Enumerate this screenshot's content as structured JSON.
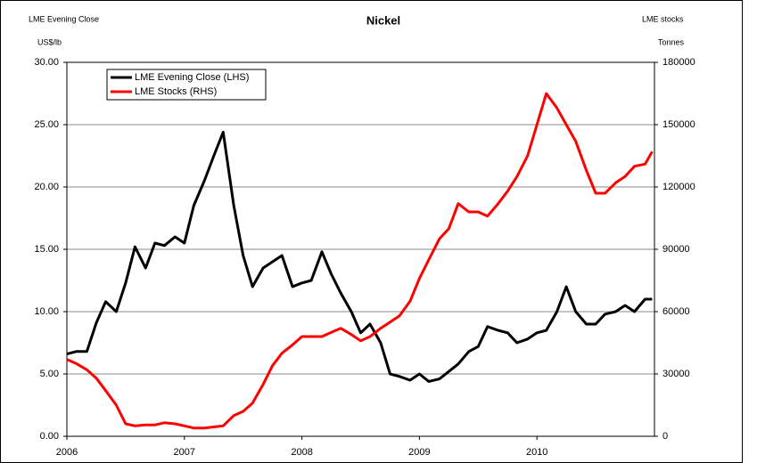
{
  "chart_data": {
    "type": "line",
    "title": "Nickel",
    "y_title": "LME Evening Close",
    "ylabel": "US$/lb",
    "y2_title": "LME stocks",
    "y2label": "Tonnes",
    "x": [
      2006,
      2006.08,
      2006.17,
      2006.25,
      2006.33,
      2006.42,
      2006.5,
      2006.58,
      2006.67,
      2006.75,
      2006.83,
      2006.92,
      2007,
      2007.08,
      2007.17,
      2007.25,
      2007.33,
      2007.42,
      2007.5,
      2007.58,
      2007.67,
      2007.75,
      2007.83,
      2007.92,
      2008,
      2008.08,
      2008.17,
      2008.25,
      2008.33,
      2008.42,
      2008.5,
      2008.58,
      2008.67,
      2008.75,
      2008.83,
      2008.92,
      2009,
      2009.08,
      2009.17,
      2009.25,
      2009.33,
      2009.42,
      2009.5,
      2009.58,
      2009.67,
      2009.75,
      2009.83,
      2009.92,
      2010,
      2010.08,
      2010.17,
      2010.25,
      2010.33,
      2010.42,
      2010.5,
      2010.58,
      2010.67,
      2010.75,
      2010.83,
      2010.92,
      2010.98
    ],
    "series": [
      {
        "name": "LME Evening Close (LHS)",
        "color": "#000000",
        "axis": "y",
        "values": [
          6.6,
          6.8,
          6.8,
          9.1,
          10.8,
          10.0,
          12.3,
          15.2,
          13.5,
          15.5,
          15.3,
          16,
          15.5,
          18.5,
          20.5,
          22.5,
          24.4,
          18.5,
          14.5,
          12,
          13.5,
          14,
          14.5,
          12,
          12.3,
          12.5,
          14.8,
          13.0,
          11.5,
          10.0,
          8.3,
          9.0,
          7.5,
          5.0,
          4.8,
          4.5,
          5.0,
          4.4,
          4.6,
          5.2,
          5.8,
          6.8,
          7.2,
          8.8,
          8.5,
          8.3,
          7.5,
          7.8,
          8.3,
          8.5,
          10.0,
          12.0,
          10.0,
          9.0,
          9.0,
          9.8,
          10.0,
          10.5,
          10.0,
          11.0,
          11.0
        ]
      },
      {
        "name": "LME Stocks (RHS)",
        "color": "#ff0000",
        "axis": "y2",
        "values": [
          37000,
          35000,
          32000,
          28000,
          22000,
          15000,
          6000,
          5000,
          5500,
          5500,
          6500,
          6000,
          5000,
          4000,
          4000,
          4500,
          5000,
          10000,
          12000,
          16000,
          25000,
          34000,
          40000,
          44000,
          48000,
          48000,
          48000,
          50000,
          52000,
          49000,
          46000,
          48000,
          52000,
          55000,
          58000,
          65000,
          76000,
          85000,
          95000,
          100000,
          112000,
          108000,
          108000,
          106000,
          112000,
          118000,
          125000,
          135000,
          150000,
          165000,
          158000,
          150000,
          142000,
          128000,
          117000,
          117000,
          122000,
          125000,
          130000,
          131000,
          137000
        ]
      }
    ],
    "xlim": [
      2006,
      2011
    ],
    "xticks": [
      2006,
      2007,
      2008,
      2009,
      2010
    ],
    "ylim": [
      0,
      30
    ],
    "yticks": [
      {
        "value": 0,
        "label": "0.00"
      },
      {
        "value": 5,
        "label": "5.00"
      },
      {
        "value": 10,
        "label": "10.00"
      },
      {
        "value": 15,
        "label": "15.00"
      },
      {
        "value": 20,
        "label": "20.00"
      },
      {
        "value": 25,
        "label": "25.00"
      },
      {
        "value": 30,
        "label": "30.00"
      }
    ],
    "y2lim": [
      0,
      180000
    ],
    "y2ticks": [
      0,
      30000,
      60000,
      90000,
      120000,
      150000,
      180000
    ],
    "grid": true,
    "legend": "top-left"
  }
}
